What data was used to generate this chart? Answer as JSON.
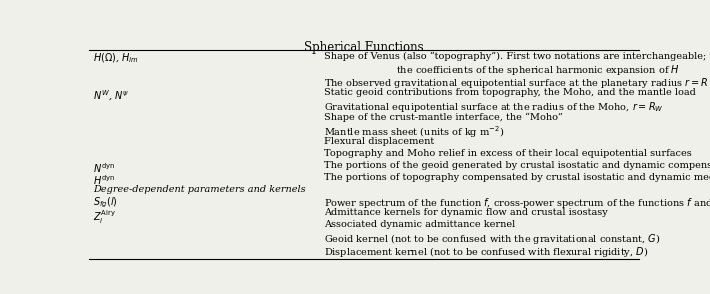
{
  "title": "Spherical Functions",
  "col_split": 0.42,
  "background": "#f0f0eb",
  "rows": [
    {
      "left": "$H(\\Omega)$, $H_{lm}$",
      "right_lines": [
        "Shape of Venus (also “topography”). First two notations are interchangeable; third notation refers to",
        "the coefficients of the spherical harmonic expansion of $H$"
      ]
    },
    {
      "left": "",
      "right_lines": [
        "The observed gravitational equipotential surface at the planetary radius $r=R$ (the “geoid”)"
      ]
    },
    {
      "left": "$N^W$, $N^\\psi$",
      "right_lines": [
        "Static geoid contributions from topography, the Moho, and the mantle load"
      ]
    },
    {
      "left": "",
      "right_lines": [
        "Gravitational equipotential surface at the radius of the Moho, $r=R_W$"
      ]
    },
    {
      "left": "",
      "right_lines": [
        "Shape of the crust-mantle interface, the “Moho”"
      ]
    },
    {
      "left": "",
      "right_lines": [
        "Mantle mass sheet (units of kg m$^{-2}$)"
      ]
    },
    {
      "left": "",
      "right_lines": [
        "Flexural displacement"
      ]
    },
    {
      "left": "",
      "right_lines": [
        "Topography and Moho relief in excess of their local equipotential surfaces"
      ]
    },
    {
      "left": "$N^{\\mathrm{dyn}}$",
      "right_lines": [
        "The portions of the geoid generated by crustal isostatic and dynamic compensation"
      ]
    },
    {
      "left": "$H^{\\mathrm{dyn}}$",
      "right_lines": [
        "The portions of topography compensated by crustal isostatic and dynamic mechanisms"
      ]
    },
    {
      "left": "Degree-dependent parameters and kernels",
      "right_lines": [],
      "section_header": true
    },
    {
      "left": "$S_{fg}(l)$",
      "right_lines": [
        "Power spectrum of the function $f$, cross-power spectrum of the functions $f$ and $g$"
      ]
    },
    {
      "left": "$Z_l^{\\mathrm{Airy}}$",
      "right_lines": [
        "Admittance kernels for dynamic flow and crustal isostasy"
      ]
    },
    {
      "left": "",
      "right_lines": [
        "Associated dynamic admittance kernel"
      ]
    },
    {
      "left": "",
      "right_lines": [
        "Geoid kernel (not to be confused with the gravitational constant, $G$)"
      ]
    },
    {
      "left": "",
      "right_lines": [
        "Displacement kernel (not to be confused with flexural rigidity, $D$)"
      ]
    }
  ]
}
